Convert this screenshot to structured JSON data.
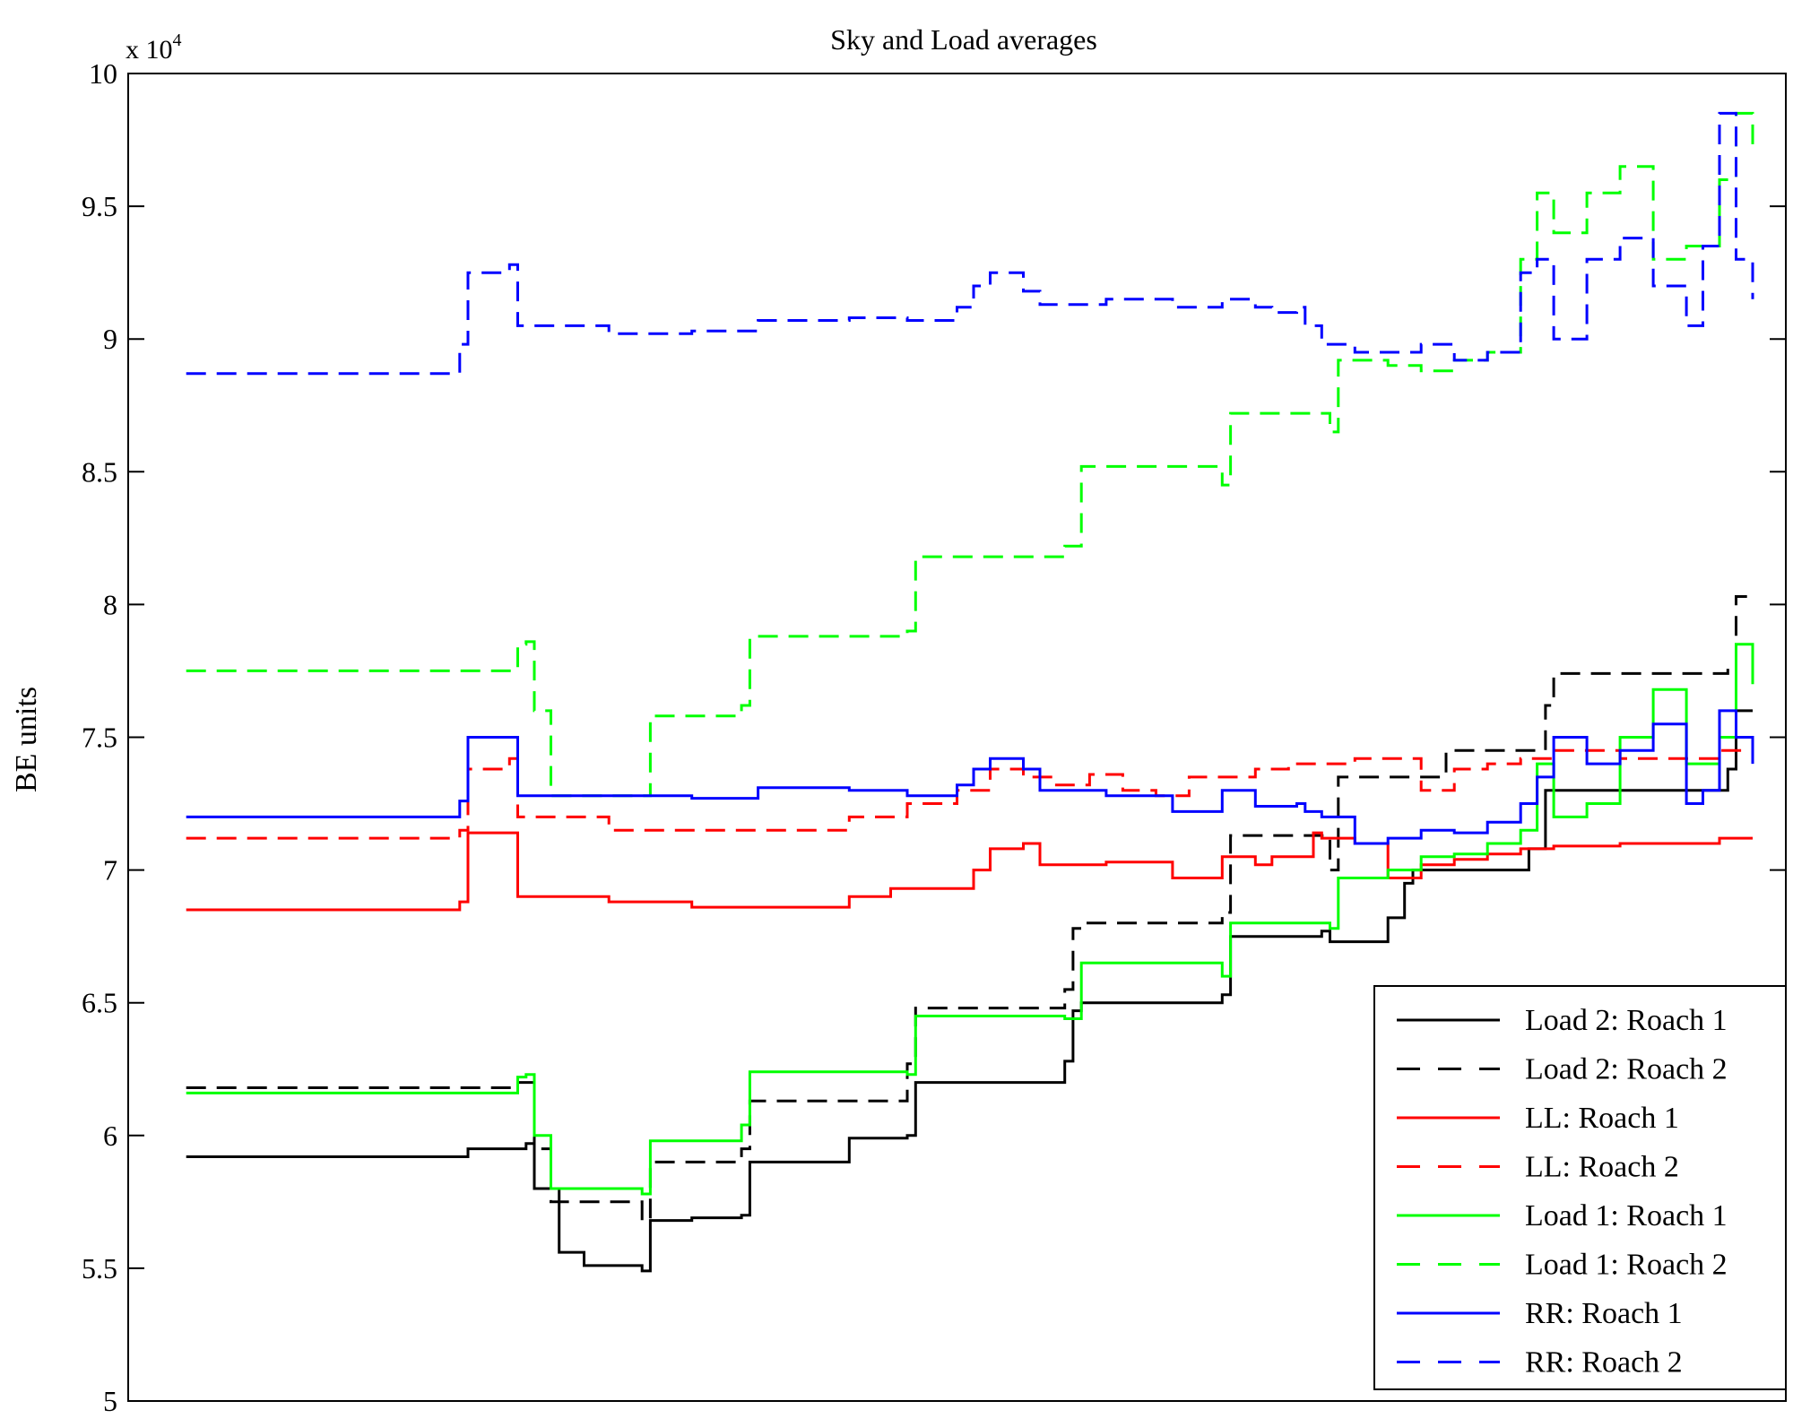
{
  "chart_data": {
    "type": "line",
    "title": "Sky and Load averages",
    "ylabel": "BE units",
    "xlabel": "",
    "y_multiplier_base": "x 10",
    "y_multiplier_exp": "4",
    "ylim": [
      5,
      10
    ],
    "xlim": [
      0,
      100
    ],
    "yticks": [
      5,
      5.5,
      6,
      6.5,
      7,
      7.5,
      8,
      8.5,
      9,
      9.5,
      10
    ],
    "ytick_labels": [
      "5",
      "5.5",
      "6",
      "6.5",
      "7",
      "7.5",
      "8",
      "8.5",
      "9",
      "9.5",
      "10"
    ],
    "grid": false,
    "legend_position": "bottom-right",
    "series": [
      {
        "name": "Load 2: Roach 1",
        "color": "#000000",
        "dash": "solid",
        "x": [
          3.5,
          20.5,
          24,
          24.5,
          26,
          27.5,
          31,
          31.5,
          34,
          37,
          37.5,
          43.5,
          47,
          47.5,
          56.5,
          57,
          57.5,
          66,
          66.5,
          72,
          72.5,
          76,
          77,
          77.5,
          84.5,
          85.5,
          96.5,
          97,
          98
        ],
        "y": [
          5.92,
          5.95,
          5.97,
          5.8,
          5.56,
          5.51,
          5.49,
          5.68,
          5.69,
          5.7,
          5.9,
          5.99,
          6.0,
          6.2,
          6.28,
          6.47,
          6.5,
          6.53,
          6.75,
          6.77,
          6.73,
          6.82,
          6.95,
          7.0,
          7.08,
          7.3,
          7.38,
          7.6,
          7.6
        ]
      },
      {
        "name": "Load 2: Roach 2",
        "color": "#000000",
        "dash": "dashed",
        "x": [
          3.5,
          23.5,
          24,
          24.5,
          25.5,
          31,
          31.5,
          37,
          37.5,
          47,
          47.5,
          56.5,
          57,
          57.5,
          66,
          66.5,
          72.5,
          73,
          79.5,
          80,
          85.5,
          86,
          96.5,
          97,
          98
        ],
        "y": [
          6.18,
          6.2,
          6.2,
          5.95,
          5.75,
          5.68,
          5.9,
          5.95,
          6.13,
          6.27,
          6.48,
          6.55,
          6.78,
          6.8,
          6.84,
          7.13,
          7.0,
          7.35,
          7.45,
          7.45,
          7.62,
          7.74,
          7.76,
          8.03,
          8.02
        ]
      },
      {
        "name": "LL: Roach 1",
        "color": "#ff0000",
        "dash": "solid",
        "x": [
          3.5,
          20,
          20.5,
          23,
          23.5,
          29,
          34,
          38,
          43.5,
          46,
          50,
          51,
          52,
          54,
          55,
          59,
          63,
          66,
          68,
          69,
          71.5,
          72,
          74,
          76,
          78,
          80,
          82,
          84,
          86,
          90,
          96,
          98
        ],
        "y": [
          6.85,
          6.88,
          7.14,
          7.14,
          6.9,
          6.88,
          6.86,
          6.86,
          6.9,
          6.93,
          6.93,
          7.0,
          7.08,
          7.1,
          7.02,
          7.03,
          6.97,
          7.05,
          7.02,
          7.05,
          7.14,
          7.12,
          7.1,
          6.97,
          7.02,
          7.04,
          7.06,
          7.08,
          7.09,
          7.1,
          7.12,
          7.12
        ]
      },
      {
        "name": "LL: Roach 2",
        "color": "#ff0000",
        "dash": "dashed",
        "x": [
          3.5,
          20,
          20.5,
          23,
          23.5,
          29,
          34,
          38,
          43.5,
          47,
          50,
          52,
          54,
          56,
          58,
          60,
          62,
          64,
          68,
          70,
          74,
          78,
          80,
          82,
          84,
          86,
          90,
          96,
          98
        ],
        "y": [
          7.12,
          7.15,
          7.38,
          7.42,
          7.2,
          7.15,
          7.15,
          7.15,
          7.2,
          7.25,
          7.3,
          7.38,
          7.35,
          7.32,
          7.36,
          7.3,
          7.28,
          7.35,
          7.38,
          7.4,
          7.42,
          7.3,
          7.38,
          7.4,
          7.42,
          7.45,
          7.42,
          7.45,
          7.45
        ]
      },
      {
        "name": "Load 1: Roach 1",
        "color": "#00ff00",
        "dash": "solid",
        "x": [
          3.5,
          23.5,
          24,
          24.5,
          25.5,
          31,
          31.5,
          37,
          37.5,
          47,
          47.5,
          56.5,
          57,
          57.5,
          66,
          66.5,
          72.5,
          73,
          76,
          78,
          80,
          82,
          84,
          85,
          86,
          88,
          90,
          92,
          94,
          96,
          97,
          98
        ],
        "y": [
          6.16,
          6.22,
          6.23,
          6.0,
          5.8,
          5.78,
          5.98,
          6.04,
          6.24,
          6.23,
          6.45,
          6.44,
          6.44,
          6.65,
          6.6,
          6.8,
          6.78,
          6.97,
          7.0,
          7.05,
          7.06,
          7.1,
          7.15,
          7.4,
          7.2,
          7.25,
          7.5,
          7.68,
          7.4,
          7.5,
          7.85,
          7.7
        ]
      },
      {
        "name": "Load 1: Roach 2",
        "color": "#00ff00",
        "dash": "dashed",
        "x": [
          3.5,
          23.5,
          24,
          24.5,
          25.5,
          31,
          31.5,
          37,
          37.5,
          47,
          47.5,
          56.5,
          57,
          57.5,
          66,
          66.5,
          72.5,
          73,
          76,
          78,
          80,
          82,
          84,
          85,
          86,
          88,
          90,
          92,
          94,
          96,
          97,
          98
        ],
        "y": [
          7.75,
          7.85,
          7.86,
          7.6,
          7.28,
          7.28,
          7.58,
          7.62,
          7.88,
          7.9,
          8.18,
          8.22,
          8.22,
          8.52,
          8.45,
          8.72,
          8.65,
          8.92,
          8.9,
          8.88,
          8.92,
          8.95,
          9.3,
          9.55,
          9.4,
          9.55,
          9.65,
          9.3,
          9.35,
          9.6,
          9.85,
          9.7
        ]
      },
      {
        "name": "RR: Roach 1",
        "color": "#0000ff",
        "dash": "solid",
        "x": [
          3.5,
          20,
          20.5,
          23,
          23.5,
          29,
          34,
          38,
          43.5,
          47,
          50,
          51,
          52,
          54,
          55,
          59,
          63,
          66,
          68,
          69,
          70.5,
          71,
          72,
          74,
          76,
          78,
          80,
          82,
          84,
          85,
          86,
          88,
          90,
          92,
          94,
          95,
          96,
          97,
          98
        ],
        "y": [
          7.2,
          7.26,
          7.5,
          7.5,
          7.28,
          7.28,
          7.27,
          7.31,
          7.3,
          7.28,
          7.32,
          7.38,
          7.42,
          7.38,
          7.3,
          7.28,
          7.22,
          7.3,
          7.24,
          7.24,
          7.25,
          7.22,
          7.2,
          7.1,
          7.12,
          7.15,
          7.14,
          7.18,
          7.25,
          7.35,
          7.5,
          7.4,
          7.45,
          7.55,
          7.25,
          7.3,
          7.6,
          7.5,
          7.4
        ]
      },
      {
        "name": "RR: Roach 2",
        "color": "#0000ff",
        "dash": "dashed",
        "x": [
          3.5,
          20,
          20.5,
          23,
          23.5,
          29,
          34,
          38,
          43.5,
          47,
          50,
          51,
          52,
          54,
          55,
          59,
          63,
          66,
          68,
          69,
          70.5,
          71,
          72,
          74,
          76,
          78,
          80,
          82,
          84,
          85,
          86,
          88,
          90,
          92,
          94,
          95,
          96,
          97,
          98
        ],
        "y": [
          8.87,
          8.98,
          9.25,
          9.28,
          9.05,
          9.02,
          9.03,
          9.07,
          9.08,
          9.07,
          9.12,
          9.2,
          9.25,
          9.18,
          9.13,
          9.15,
          9.12,
          9.15,
          9.12,
          9.1,
          9.12,
          9.05,
          8.98,
          8.95,
          8.95,
          8.98,
          8.92,
          8.95,
          9.25,
          9.3,
          9.0,
          9.3,
          9.38,
          9.2,
          9.05,
          9.35,
          9.85,
          9.3,
          9.15
        ]
      }
    ]
  }
}
